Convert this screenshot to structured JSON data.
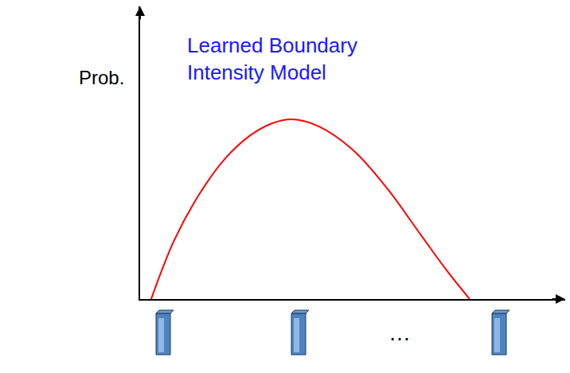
{
  "chart_data": {
    "type": "line",
    "annotations": [
      "Learned Boundary Intensity Model",
      "…"
    ],
    "ylabel": "Prob.",
    "x": [
      2.6,
      8,
      14,
      20,
      26,
      31,
      35.8,
      42,
      50,
      58,
      66,
      72,
      77.5
    ],
    "values": [
      0,
      20,
      36,
      48,
      56,
      60,
      61.4,
      59,
      51,
      38,
      22,
      10,
      0
    ],
    "color": "#ff0000",
    "line_style": "solid",
    "xlim": [
      0,
      100
    ],
    "ylim": [
      0,
      100
    ],
    "xticks": [],
    "yticks": [],
    "tick_labels": false,
    "grid": false
  }
}
